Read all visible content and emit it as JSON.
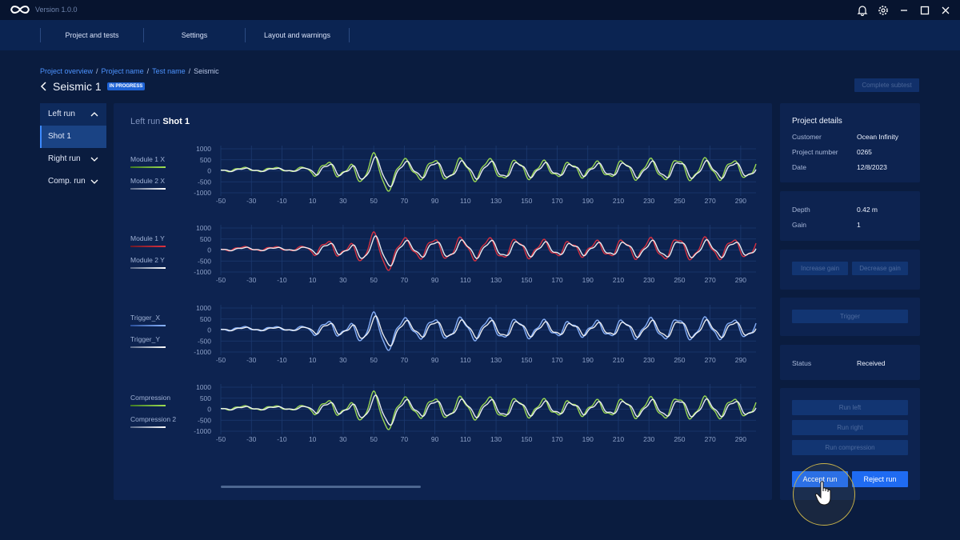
{
  "app": {
    "version": "Version 1.0.0"
  },
  "titlebar_icons": [
    "bell-icon",
    "gear-icon",
    "minimize-icon",
    "maximize-icon",
    "close-icon"
  ],
  "nav": {
    "items": [
      "Project and tests",
      "Settings",
      "Layout and warnings"
    ]
  },
  "breadcrumb": {
    "items": [
      "Project overview",
      "Project name",
      "Test name",
      "Seismic"
    ]
  },
  "page": {
    "title": "Seismic 1",
    "status_badge": "IN PROGRESS",
    "complete_label": "Complete subtest"
  },
  "sidebar": {
    "left_run": "Left run",
    "shot": "Shot 1",
    "right_run": "Right run",
    "comp_run": "Comp. run"
  },
  "chart_header": {
    "run": "Left run",
    "shot": "Shot 1"
  },
  "colors": {
    "green": "#9fdf53",
    "red": "#e0323f",
    "blue": "#8ab4ff",
    "white": "#ffffff",
    "accent": "#1f6bf2"
  },
  "chart_data": [
    {
      "type": "line",
      "xlim": [
        -50,
        300
      ],
      "ylim": [
        -1000,
        1000
      ],
      "x_ticks": [
        -50,
        -30,
        -10,
        10,
        30,
        50,
        70,
        90,
        110,
        130,
        150,
        170,
        190,
        210,
        230,
        250,
        270,
        290
      ],
      "y_ticks": [
        1000,
        500,
        0,
        -500,
        -1000
      ],
      "series": [
        {
          "name": "Module 1 X",
          "color": "#9fdf53"
        },
        {
          "name": "Module 2 X",
          "color": "#ffffff"
        }
      ]
    },
    {
      "type": "line",
      "xlim": [
        -50,
        300
      ],
      "ylim": [
        -1000,
        1000
      ],
      "x_ticks": [
        -50,
        -30,
        -10,
        10,
        30,
        50,
        70,
        90,
        110,
        130,
        150,
        170,
        190,
        210,
        230,
        250,
        270,
        290
      ],
      "y_ticks": [
        1000,
        500,
        0,
        -500,
        -1000
      ],
      "series": [
        {
          "name": "Module 1 Y",
          "color": "#e0323f"
        },
        {
          "name": "Module 2 Y",
          "color": "#ffffff"
        }
      ]
    },
    {
      "type": "line",
      "xlim": [
        -50,
        300
      ],
      "ylim": [
        -1000,
        1000
      ],
      "x_ticks": [
        -50,
        -30,
        -10,
        10,
        30,
        50,
        70,
        90,
        110,
        130,
        150,
        170,
        190,
        210,
        230,
        250,
        270,
        290
      ],
      "y_ticks": [
        1000,
        500,
        0,
        -500,
        -1000
      ],
      "series": [
        {
          "name": "Trigger_X",
          "color": "#8ab4ff"
        },
        {
          "name": "Trigger_Y",
          "color": "#ffffff"
        }
      ]
    },
    {
      "type": "line",
      "xlim": [
        -50,
        300
      ],
      "ylim": [
        -1000,
        1000
      ],
      "x_ticks": [
        -50,
        -30,
        -10,
        10,
        30,
        50,
        70,
        90,
        110,
        130,
        150,
        170,
        190,
        210,
        230,
        250,
        270,
        290
      ],
      "y_ticks": [
        1000,
        500,
        0,
        -500,
        -1000
      ],
      "series": [
        {
          "name": "Compression",
          "color": "#9fdf53"
        },
        {
          "name": "Compression 2",
          "color": "#ffffff"
        }
      ]
    }
  ],
  "project_details": {
    "title": "Project details",
    "customer_label": "Customer",
    "customer": "Ocean Infinity",
    "number_label": "Project number",
    "number": "0265",
    "date_label": "Date",
    "date": "12/8/2023"
  },
  "settings": {
    "depth_label": "Depth",
    "depth": "0.42 m",
    "gain_label": "Gain",
    "gain": "1"
  },
  "gain_buttons": {
    "increase": "Increase gain",
    "decrease": "Decrease gain"
  },
  "trigger_button": "Trigger",
  "status": {
    "label": "Status",
    "value": "Received"
  },
  "run_buttons": {
    "left": "Run left",
    "right": "Run right",
    "compression": "Run compression"
  },
  "actions": {
    "accept": "Accept run",
    "reject": "Reject run"
  }
}
